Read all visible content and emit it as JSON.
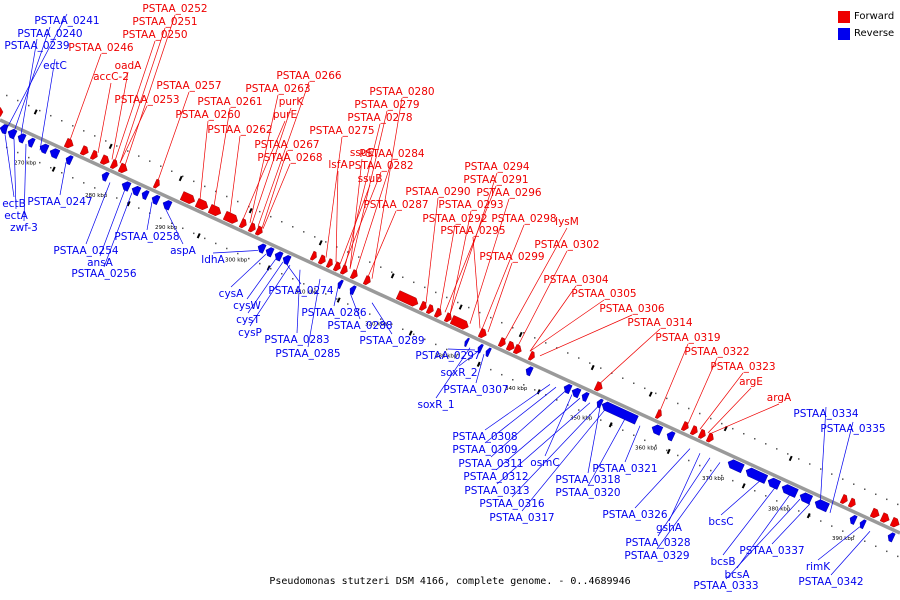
{
  "caption": "Pseudomonas stutzeri DSM 4166, complete genome. - 0..4689946",
  "legend": [
    {
      "label": "Forward",
      "color": "#ee0000"
    },
    {
      "label": "Reverse",
      "color": "#0000ee"
    }
  ],
  "colors": {
    "forward": "#ee0000",
    "reverse": "#0000ee",
    "backbone": "#9a9a9a"
  },
  "ticks": [
    "270 kbp",
    "280 kbp",
    "290 kbp",
    "300 kbp",
    "310 kbp",
    "320 kbp",
    "330 kbp",
    "340 kbp",
    "350 kbp",
    "360 kbp",
    "370 kbp",
    "380 kbp",
    "390 kbp"
  ],
  "forward_labels": [
    "PSTAA_0252",
    "PSTAA_0251",
    "PSTAA_0250",
    "PSTAA_0246",
    "oadA",
    "accC-2",
    "PSTAA_0253",
    "PSTAA_0257",
    "PSTAA_0266",
    "PSTAA_0263",
    "purK",
    "PSTAA_0261",
    "PSTAA_0260",
    "purE",
    "PSTAA_0262",
    "PSTAA_0267",
    "PSTAA_0268",
    "PSTAA_0280",
    "PSTAA_0279",
    "PSTAA_0278",
    "PSTAA_0275",
    "ssuE",
    "lsfA",
    "PSTAA_0284",
    "PSTAA_0282",
    "ssuB",
    "PSTAA_0287",
    "PSTAA_0294",
    "PSTAA_0291",
    "PSTAA_0290",
    "PSTAA_0296",
    "PSTAA_0293",
    "PSTAA_0292",
    "PSTAA_0298",
    "lysM",
    "PSTAA_0295",
    "PSTAA_0302",
    "PSTAA_0299",
    "PSTAA_0304",
    "PSTAA_0305",
    "PSTAA_0306",
    "PSTAA_0314",
    "PSTAA_0319",
    "PSTAA_0322",
    "PSTAA_0323",
    "argE",
    "argA"
  ],
  "reverse_labels": [
    "PSTAA_0241",
    "PSTAA_0240",
    "PSTAA_0239",
    "ectC",
    "ectB",
    "ectA",
    "zwf-3",
    "PSTAA_0247",
    "PSTAA_0254",
    "ansA",
    "PSTAA_0256",
    "PSTAA_0258",
    "aspA",
    "ldhA",
    "cysA",
    "cysW",
    "PSTAA_0274",
    "cysT",
    "cysP",
    "PSTAA_0286",
    "PSTAA_0283",
    "PSTAA_0288",
    "PSTAA_0285",
    "PSTAA_0289",
    "PSTAA_0297",
    "soxR_2",
    "PSTAA_0307",
    "soxR_1",
    "PSTAA_0308",
    "PSTAA_0309",
    "PSTAA_0311",
    "osmC",
    "PSTAA_0312",
    "PSTAA_0318",
    "PSTAA_0313",
    "PSTAA_0320",
    "PSTAA_0321",
    "PSTAA_0316",
    "PSTAA_0317",
    "PSTAA_0326",
    "gshA",
    "PSTAA_0328",
    "bcsC",
    "PSTAA_0329",
    "bcsB",
    "PSTAA_0337",
    "bcsA",
    "PSTAA_0333",
    "PSTAA_0334",
    "PSTAA_0335",
    "rimK",
    "PSTAA_0342"
  ]
}
